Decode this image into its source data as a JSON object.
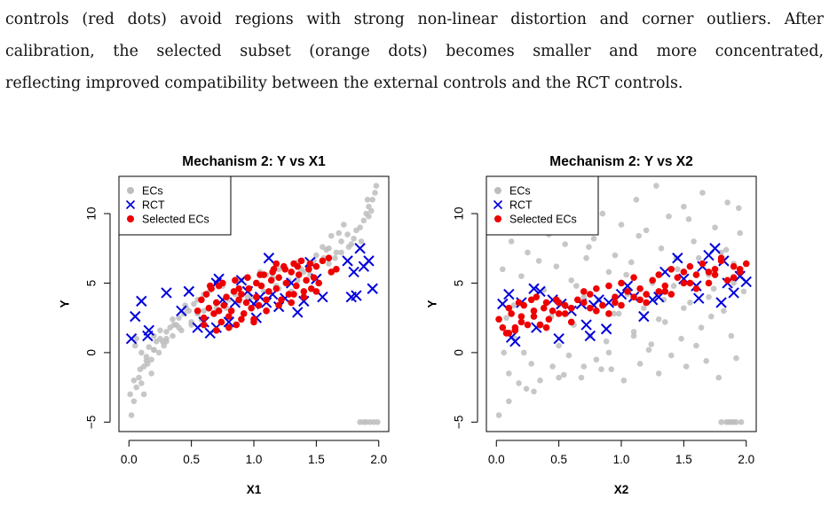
{
  "text": {
    "line1": "controls (red dots) avoid regions with strong non-linear distortion and corner outliers. After",
    "line2": "calibration, the selected subset (orange dots) becomes smaller and more concentrated,",
    "line3": "reflecting improved compatibility between the external controls and the RCT controls."
  },
  "colors": {
    "ecs": "#bdbdbd",
    "rct": "#0000dd",
    "selected": "#ee0000"
  },
  "chart_data": [
    {
      "type": "scatter",
      "title": "Mechanism 2: Y vs X1",
      "xlabel": "X1",
      "ylabel": "Y",
      "xlim": [
        0,
        2
      ],
      "ylim": [
        -5,
        12
      ],
      "xticks": [
        "0.0",
        "0.5",
        "1.0",
        "1.5",
        "2.0"
      ],
      "yticks": [
        "-5",
        "0",
        "5",
        "10"
      ],
      "legend": [
        "ECs",
        "RCT",
        "Selected ECs"
      ],
      "legend_position": "top-left",
      "series": [
        {
          "name": "ECs",
          "marker": "dot",
          "x": [
            0.02,
            0.04,
            0.06,
            0.05,
            0.08,
            0.1,
            0.12,
            0.14,
            0.16,
            0.18,
            0.2,
            0.22,
            0.25,
            0.28,
            0.3,
            0.33,
            0.36,
            0.4,
            0.44,
            0.48,
            0.52,
            0.55,
            0.06,
            0.1,
            0.15,
            0.2,
            0.25,
            0.3,
            0.35,
            0.4,
            0.45,
            0.5,
            0.55,
            0.6,
            0.65,
            0.7,
            0.12,
            0.18,
            0.24,
            0.3,
            0.38,
            0.46,
            0.6,
            0.75,
            0.9,
            1.05,
            1.2,
            1.35,
            1.5,
            1.6,
            1.7,
            1.75,
            1.8,
            1.85,
            1.88,
            1.9,
            1.92,
            1.95,
            1.97,
            1.98,
            1.7,
            1.65,
            1.6,
            1.55,
            1.5,
            1.45,
            1.4,
            1.35,
            1.3,
            1.25,
            1.2,
            1.15,
            1.1,
            0.95,
            0.85,
            0.8,
            1.62,
            1.72,
            1.82,
            1.92,
            1.78,
            1.86,
            1.94,
            1.68,
            1.58,
            1.48,
            1.38,
            1.28,
            1.18,
            1.08,
            0.98,
            0.88,
            0.78,
            0.68,
            0.58,
            0.5,
            0.42,
            0.35,
            0.27,
            0.2,
            0.14,
            0.09,
            0.04,
            0.01,
            1.85,
            1.88,
            1.9,
            1.93,
            1.96,
            1.99,
            1.91,
            1.76,
            1.66,
            1.56
          ],
          "y": [
            -4.5,
            -3.5,
            -2.5,
            0.5,
            -1.8,
            -2.2,
            -1.0,
            -0.3,
            0.4,
            -0.5,
            0.2,
            0.8,
            1.0,
            0.5,
            1.5,
            1.8,
            2.0,
            2.5,
            2.8,
            3.0,
            3.5,
            2.8,
            1.0,
            0.0,
            -0.8,
            1.2,
            1.6,
            0.8,
            2.4,
            1.8,
            3.4,
            2.2,
            3.8,
            3.0,
            4.5,
            3.2,
            -3.0,
            -1.5,
            0.0,
            1.0,
            2.0,
            3.2,
            4.2,
            4.8,
            5.2,
            5.8,
            6.0,
            6.5,
            7.0,
            7.5,
            8.0,
            8.5,
            8.2,
            9.0,
            9.5,
            10.0,
            10.5,
            11.0,
            11.5,
            12.0,
            7.2,
            6.8,
            6.4,
            7.6,
            6.2,
            5.6,
            5.8,
            5.2,
            4.4,
            5.0,
            4.6,
            5.4,
            5.6,
            4.0,
            4.2,
            3.8,
            8.4,
            9.2,
            8.8,
            9.8,
            7.8,
            8.0,
            10.2,
            8.6,
            7.4,
            6.6,
            6.0,
            5.2,
            4.8,
            4.4,
            4.0,
            3.6,
            3.2,
            2.8,
            2.4,
            2.0,
            1.6,
            1.2,
            0.8,
            0.2,
            -0.6,
            -1.2,
            -2.0,
            -3.0,
            -5,
            -5,
            -5,
            -5,
            -5,
            -5,
            11.0,
            7.6,
            7.2,
            6.8
          ]
        },
        {
          "name": "RCT",
          "marker": "x",
          "x": [
            0.02,
            0.05,
            0.1,
            0.15,
            0.16,
            0.3,
            0.42,
            0.48,
            0.55,
            0.6,
            0.65,
            0.7,
            0.7,
            0.72,
            0.75,
            0.8,
            0.85,
            0.9,
            0.95,
            1.0,
            1.02,
            1.05,
            1.1,
            1.12,
            1.15,
            1.2,
            1.25,
            1.3,
            1.35,
            1.4,
            1.45,
            1.5,
            1.55,
            1.75,
            1.78,
            1.8,
            1.82,
            1.85,
            1.88,
            1.92,
            1.95
          ],
          "y": [
            1.0,
            2.6,
            3.7,
            1.2,
            1.6,
            4.3,
            3.0,
            4.4,
            1.8,
            2.2,
            1.4,
            5.0,
            1.8,
            5.3,
            3.8,
            2.2,
            3.6,
            5.2,
            4.4,
            3.5,
            2.5,
            4.0,
            3.6,
            6.8,
            4.2,
            3.3,
            3.9,
            5.0,
            2.9,
            3.7,
            6.5,
            5.3,
            4.0,
            6.6,
            4.0,
            5.8,
            4.1,
            7.5,
            6.2,
            6.6,
            4.6
          ]
        },
        {
          "name": "Selected ECs",
          "marker": "dot",
          "x": [
            0.55,
            0.58,
            0.6,
            0.62,
            0.64,
            0.66,
            0.68,
            0.7,
            0.72,
            0.74,
            0.76,
            0.78,
            0.8,
            0.82,
            0.84,
            0.86,
            0.88,
            0.9,
            0.92,
            0.94,
            0.96,
            0.98,
            1.0,
            1.02,
            1.04,
            1.06,
            1.08,
            1.1,
            1.12,
            1.14,
            1.16,
            1.18,
            1.2,
            1.22,
            1.24,
            1.26,
            1.28,
            1.3,
            1.32,
            1.34,
            1.36,
            1.38,
            1.4,
            1.42,
            1.44,
            1.46,
            1.48,
            1.5,
            1.52,
            1.55,
            1.6,
            1.62,
            1.66,
            0.6,
            0.7,
            0.8,
            0.9,
            1.0,
            1.1,
            1.2,
            1.3,
            1.4,
            1.5,
            0.65,
            0.75,
            0.85,
            0.95,
            1.05,
            1.15,
            1.25,
            1.35,
            1.45,
            0.72,
            0.88,
            1.02,
            1.18,
            1.32
          ],
          "y": [
            3.0,
            3.8,
            2.5,
            4.2,
            3.2,
            4.6,
            2.8,
            3.6,
            4.8,
            2.2,
            3.4,
            4.0,
            2.6,
            3.0,
            4.4,
            2.0,
            3.8,
            4.2,
            2.8,
            3.6,
            4.6,
            3.2,
            2.4,
            4.0,
            3.4,
            4.8,
            5.6,
            3.8,
            4.4,
            5.2,
            6.0,
            4.6,
            5.4,
            3.8,
            6.2,
            5.0,
            4.2,
            5.8,
            6.4,
            4.8,
            5.6,
            6.6,
            4.4,
            5.2,
            6.0,
            4.6,
            5.4,
            6.2,
            5.0,
            6.6,
            6.8,
            5.8,
            6.0,
            2.0,
            1.6,
            1.8,
            2.4,
            2.2,
            3.0,
            3.4,
            3.6,
            4.0,
            4.4,
            4.8,
            5.0,
            5.2,
            5.4,
            5.6,
            5.8,
            6.0,
            6.2,
            6.4,
            3.0,
            4.6,
            5.0,
            6.4,
            4.2
          ]
        }
      ]
    },
    {
      "type": "scatter",
      "title": "Mechanism 2: Y vs X2",
      "xlabel": "X2",
      "ylabel": "Y",
      "xlim": [
        0,
        2
      ],
      "ylim": [
        -5,
        12
      ],
      "xticks": [
        "0.0",
        "0.5",
        "1.0",
        "1.5",
        "2.0"
      ],
      "yticks": [
        "-5",
        "0",
        "5",
        "10"
      ],
      "legend": [
        "ECs",
        "RCT",
        "Selected ECs"
      ],
      "legend_position": "top-left",
      "series": [
        {
          "name": "ECs",
          "marker": "dot",
          "x": [
            0.02,
            0.05,
            0.08,
            0.1,
            0.12,
            0.15,
            0.18,
            0.2,
            0.22,
            0.25,
            0.28,
            0.3,
            0.32,
            0.35,
            0.38,
            0.4,
            0.42,
            0.45,
            0.48,
            0.5,
            0.52,
            0.55,
            0.58,
            0.6,
            0.62,
            0.65,
            0.68,
            0.7,
            0.72,
            0.75,
            0.78,
            0.8,
            0.82,
            0.85,
            0.88,
            0.9,
            0.92,
            0.95,
            0.98,
            1.0,
            1.02,
            1.05,
            1.08,
            1.1,
            1.12,
            1.15,
            1.18,
            1.2,
            1.22,
            1.25,
            1.28,
            1.3,
            1.32,
            1.35,
            1.38,
            1.4,
            1.42,
            1.45,
            1.48,
            1.5,
            1.52,
            1.55,
            1.58,
            1.6,
            1.62,
            1.65,
            1.68,
            1.7,
            1.72,
            1.75,
            1.78,
            1.8,
            1.82,
            1.85,
            1.88,
            1.9,
            1.92,
            1.95,
            1.98,
            0.06,
            0.14,
            0.24,
            0.34,
            0.44,
            0.54,
            0.64,
            0.74,
            0.84,
            0.94,
            1.04,
            1.14,
            1.24,
            1.34,
            1.44,
            1.54,
            1.64,
            1.74,
            1.84,
            1.94,
            0.1,
            0.3,
            0.5,
            0.7,
            0.9,
            1.1,
            1.3,
            1.5,
            1.7,
            1.9,
            1.8,
            1.84,
            1.88,
            1.92,
            1.96,
            1.86,
            1.9
          ],
          "y": [
            -4.5,
            6.0,
            2.5,
            -1.5,
            8.0,
            1.0,
            -2.2,
            5.5,
            0.0,
            7.2,
            -0.8,
            3.0,
            9.0,
            -2.0,
            4.5,
            1.8,
            8.5,
            -1.0,
            6.2,
            0.5,
            3.5,
            7.8,
            -0.2,
            5.2,
            2.0,
            9.5,
            -1.8,
            4.0,
            6.8,
            1.2,
            8.2,
            -0.5,
            3.8,
            10.0,
            0.8,
            5.8,
            -1.2,
            7.0,
            2.8,
            9.2,
            -2.0,
            4.2,
            6.5,
            1.5,
            11.0,
            -0.8,
            3.2,
            8.8,
            0.2,
            5.0,
            12.0,
            -1.5,
            7.5,
            2.2,
            9.8,
            -0.2,
            4.8,
            6.0,
            1.0,
            10.5,
            -1.0,
            3.6,
            8.0,
            0.5,
            6.8,
            11.5,
            -0.6,
            5.6,
            2.6,
            9.0,
            -1.8,
            7.2,
            3.0,
            10.8,
            1.2,
            6.4,
            -0.4,
            8.6,
            4.4,
            0.0,
            3.4,
            -2.6,
            6.6,
            2.6,
            -1.6,
            4.8,
            7.6,
            -1.2,
            2.8,
            5.6,
            8.4,
            0.6,
            3.8,
            6.8,
            9.6,
            1.8,
            4.6,
            7.4,
            10.4,
            -3.5,
            -2.8,
            -1.8,
            -1.0,
            0.0,
            1.2,
            2.4,
            3.2,
            4.0,
            5.0,
            -5,
            -5,
            -5,
            -5,
            -5,
            -5,
            -5
          ]
        },
        {
          "name": "RCT",
          "marker": "x",
          "x": [
            0.05,
            0.1,
            0.12,
            0.15,
            0.2,
            0.3,
            0.32,
            0.35,
            0.45,
            0.5,
            0.52,
            0.6,
            0.68,
            0.72,
            0.75,
            0.78,
            0.82,
            0.88,
            0.9,
            1.0,
            1.05,
            1.1,
            1.18,
            1.25,
            1.3,
            1.35,
            1.45,
            1.5,
            1.6,
            1.62,
            1.65,
            1.7,
            1.75,
            1.8,
            1.82,
            1.85,
            1.9,
            1.95,
            2.0
          ],
          "y": [
            3.5,
            4.2,
            1.1,
            0.8,
            3.6,
            4.6,
            1.8,
            4.4,
            3.8,
            1.0,
            3.5,
            3.0,
            3.5,
            2.0,
            1.2,
            3.4,
            3.8,
            1.7,
            3.6,
            4.2,
            4.8,
            4.0,
            2.6,
            3.8,
            4.0,
            5.8,
            6.8,
            5.3,
            4.8,
            3.9,
            6.2,
            7.0,
            7.5,
            3.6,
            6.6,
            5.0,
            4.3,
            5.5,
            5.1
          ]
        },
        {
          "name": "Selected ECs",
          "marker": "dot",
          "x": [
            0.02,
            0.05,
            0.08,
            0.1,
            0.12,
            0.15,
            0.18,
            0.2,
            0.22,
            0.25,
            0.28,
            0.3,
            0.32,
            0.35,
            0.38,
            0.4,
            0.42,
            0.45,
            0.48,
            0.5,
            0.55,
            0.6,
            0.65,
            0.7,
            0.75,
            0.8,
            0.85,
            0.9,
            0.95,
            1.0,
            1.05,
            1.1,
            1.15,
            1.2,
            1.25,
            1.3,
            1.35,
            1.4,
            1.45,
            1.5,
            1.55,
            1.6,
            1.65,
            1.7,
            1.75,
            1.8,
            1.85,
            1.9,
            1.95,
            2.0,
            0.1,
            0.2,
            0.3,
            0.4,
            0.5,
            0.6,
            0.7,
            0.8,
            0.9,
            1.0,
            1.1,
            1.2,
            1.3,
            1.4,
            1.5,
            1.6,
            1.7,
            1.8,
            1.9,
            0.15,
            0.35,
            0.55,
            0.75,
            0.95,
            1.15,
            1.35,
            1.55,
            1.75,
            1.95
          ],
          "y": [
            2.4,
            1.8,
            1.4,
            3.2,
            2.8,
            1.6,
            3.6,
            2.2,
            3.4,
            2.0,
            3.8,
            2.6,
            4.0,
            2.0,
            3.2,
            3.6,
            2.4,
            3.0,
            3.8,
            2.8,
            3.4,
            3.2,
            3.8,
            3.6,
            4.2,
            4.6,
            3.4,
            4.8,
            4.0,
            5.0,
            4.4,
            5.4,
            4.6,
            4.2,
            5.2,
            5.6,
            4.8,
            6.0,
            5.4,
            5.0,
            6.2,
            5.6,
            6.4,
            5.8,
            6.0,
            6.6,
            5.2,
            6.2,
            5.8,
            6.4,
            1.4,
            2.6,
            3.0,
            1.8,
            3.6,
            2.2,
            4.4,
            3.0,
            2.8,
            3.4,
            4.0,
            3.6,
            4.4,
            4.2,
            5.8,
            4.6,
            5.0,
            6.8,
            5.4,
            1.8,
            2.0,
            2.8,
            3.2,
            3.6,
            3.8,
            4.4,
            5.0,
            5.6,
            6.0
          ]
        }
      ]
    }
  ]
}
